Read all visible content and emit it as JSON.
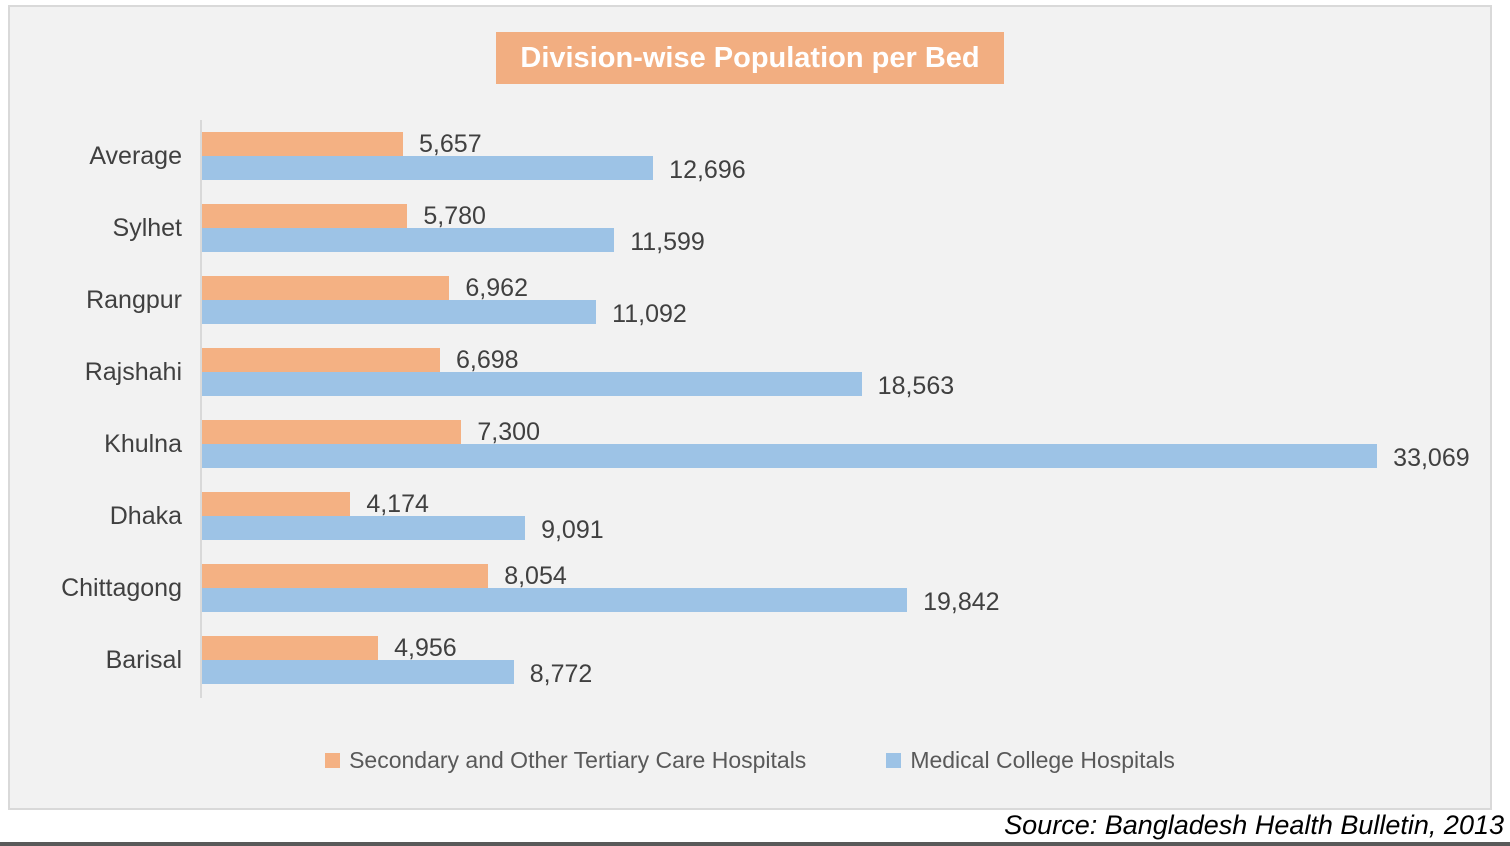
{
  "title": "Division-wise Population per Bed",
  "source_note": "Source: Bangladesh Health Bulletin, 2013",
  "colors": {
    "series_secondary": "#F4B183",
    "series_medical": "#9DC3E6",
    "title_background": "#F2AE81",
    "title_text": "#FFFFFF",
    "chart_background": "#F2F2F2",
    "chart_border": "#D9D9D9",
    "data_label_text": "#404040",
    "legend_text": "#595959",
    "bottom_rule": "#595959"
  },
  "legend": {
    "items": [
      {
        "label": "Secondary and Other Tertiary Care Hospitals",
        "color": "#F4B183"
      },
      {
        "label": "Medical College Hospitals",
        "color": "#9DC3E6"
      }
    ]
  },
  "chart_data": {
    "type": "bar",
    "orientation": "horizontal",
    "title": "Division-wise Population per Bed",
    "categories": [
      "Average",
      "Sylhet",
      "Rangpur",
      "Rajshahi",
      "Khulna",
      "Dhaka",
      "Chittagong",
      "Barisal"
    ],
    "series": [
      {
        "name": "Secondary and Other Tertiary Care Hospitals",
        "color": "#F4B183",
        "values": [
          5657,
          5780,
          6962,
          6698,
          7300,
          4174,
          8054,
          4956
        ],
        "labels": [
          "5,657",
          "5,780",
          "6,962",
          "6,698",
          "7,300",
          "4,174",
          "8,054",
          "4,956"
        ]
      },
      {
        "name": "Medical College Hospitals",
        "color": "#9DC3E6",
        "values": [
          12696,
          11599,
          11092,
          18563,
          33069,
          9091,
          19842,
          8772
        ],
        "labels": [
          "12,696",
          "11,599",
          "11,092",
          "18,563",
          "33,069",
          "9,091",
          "19,842",
          "8,772"
        ]
      }
    ],
    "xlim": [
      0,
      36300
    ],
    "grid": false,
    "data_labels": true,
    "legend_position": "bottom"
  }
}
